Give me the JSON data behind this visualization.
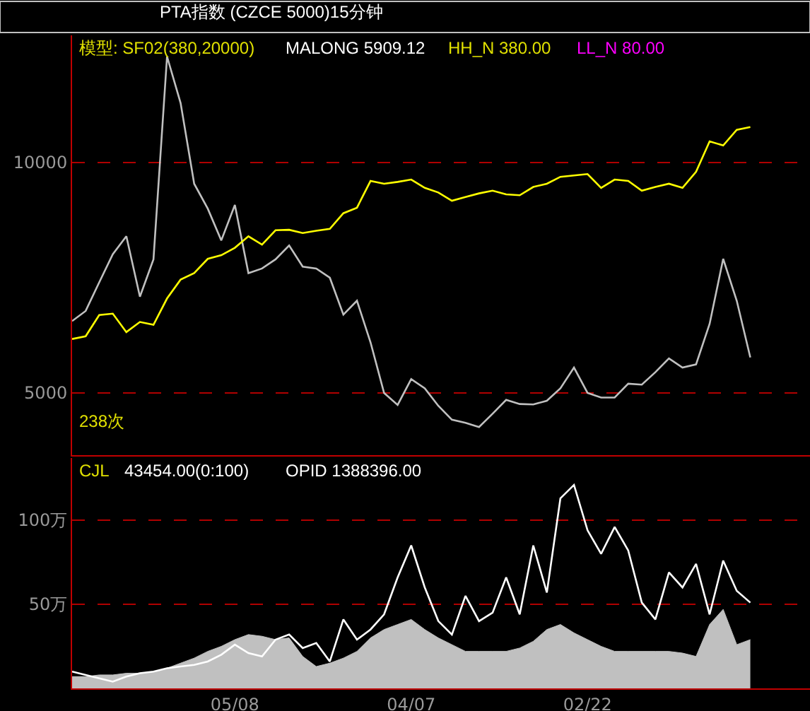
{
  "chart_data": [
    {
      "type": "line",
      "title": "PTA指数 (CZCE 5000)15分钟",
      "annotations": [
        "模型: SF02(380,20000)",
        "MALONG 5909.12",
        "HH_N 380.00",
        "LL_N 80.00",
        "238次"
      ],
      "categories": [
        null,
        null,
        null,
        null,
        null,
        null,
        null,
        null,
        null,
        null,
        null,
        null,
        null,
        null,
        null,
        null,
        null,
        null,
        null,
        null,
        null,
        null,
        null,
        null,
        null,
        null,
        null,
        null,
        null,
        null,
        null,
        null,
        null,
        null,
        null,
        null,
        null,
        null,
        null,
        null,
        null,
        null,
        null,
        null,
        null,
        null,
        null,
        null,
        null,
        null,
        null,
        null,
        null,
        null,
        null
      ],
      "ylim": [
        3650,
        12760
      ],
      "yticks": [
        5000,
        10000
      ],
      "tick_labels": "y",
      "grid": "y",
      "marker": "none",
      "line_style": "solid",
      "series": [
        {
          "color": "#c0c0c0",
          "values": [
            6560,
            6780,
            7400,
            8010,
            8400,
            7090,
            7900,
            12300,
            11290,
            9540,
            9000,
            8310,
            9080,
            7600,
            7700,
            7900,
            8200,
            7740,
            7700,
            7500,
            6700,
            7000,
            6100,
            5000,
            4740,
            5300,
            5100,
            4720,
            4420,
            4350,
            4260,
            4550,
            4850,
            4760,
            4750,
            4830,
            5100,
            5550,
            5000,
            4900,
            4900,
            5200,
            5180,
            5450,
            5750,
            5550,
            5620,
            6500,
            7910,
            7000,
            5770,
            null,
            null,
            null,
            null
          ]
        },
        {
          "color": "#ffff00",
          "values": [
            6170,
            6230,
            6690,
            6720,
            6320,
            6540,
            6480,
            7050,
            7460,
            7600,
            7910,
            7990,
            8150,
            8400,
            8220,
            8530,
            8540,
            8470,
            8520,
            8560,
            8900,
            9020,
            9600,
            9540,
            9580,
            9630,
            9450,
            9350,
            9170,
            9250,
            9330,
            9390,
            9310,
            9290,
            9470,
            9540,
            9690,
            9720,
            9750,
            9450,
            9630,
            9600,
            9390,
            9470,
            9540,
            9450,
            9800,
            10460,
            10370,
            10710,
            10770,
            null,
            null,
            null,
            null
          ]
        }
      ]
    },
    {
      "type": "line",
      "annotations": [
        "CJL",
        "43454.00(0:100)",
        "OPID 1388396.00"
      ],
      "categories": [
        null,
        null,
        null,
        null,
        null,
        null,
        null,
        null,
        null,
        null,
        null,
        null,
        "05/08",
        null,
        null,
        null,
        null,
        null,
        null,
        null,
        null,
        null,
        null,
        null,
        null,
        "04/07",
        null,
        null,
        null,
        null,
        null,
        null,
        null,
        null,
        null,
        null,
        null,
        null,
        "02/22",
        null,
        null,
        null,
        null,
        null,
        null,
        null,
        null,
        null,
        null,
        null,
        null,
        null,
        null,
        null,
        null
      ],
      "ylim": [
        0,
        137
      ],
      "yticks": [
        {
          "value": 50,
          "label": "50万"
        },
        {
          "value": 100,
          "label": "100万"
        }
      ],
      "grid": "y",
      "marker": "none",
      "line_style": "solid",
      "series": [
        {
          "type": "area",
          "color": "#c0c0c0",
          "values": [
            7,
            7,
            8,
            8,
            9,
            9,
            10,
            12,
            15,
            18,
            22,
            25,
            29,
            32,
            31,
            29,
            30,
            19,
            13,
            15,
            18,
            22,
            30,
            35,
            38,
            41,
            35,
            30,
            26,
            22,
            22,
            22,
            22,
            24,
            28,
            35,
            38,
            33,
            29,
            25,
            22,
            22,
            22,
            22,
            22,
            21,
            19,
            38,
            47,
            26,
            29,
            null,
            null,
            null,
            null
          ]
        },
        {
          "color": "#ffffff",
          "values": [
            10,
            8,
            6,
            4,
            7,
            9,
            10,
            12,
            13,
            14,
            16,
            20,
            26,
            21,
            19,
            29,
            32,
            24,
            27,
            16,
            41,
            29,
            35,
            44,
            66,
            85,
            60,
            40,
            32,
            55,
            40,
            45,
            66,
            44,
            85,
            57,
            113,
            121,
            94,
            80,
            96,
            82,
            51,
            41,
            69,
            60,
            74,
            44,
            76,
            58,
            51,
            null,
            null,
            null,
            null
          ]
        }
      ]
    }
  ]
}
